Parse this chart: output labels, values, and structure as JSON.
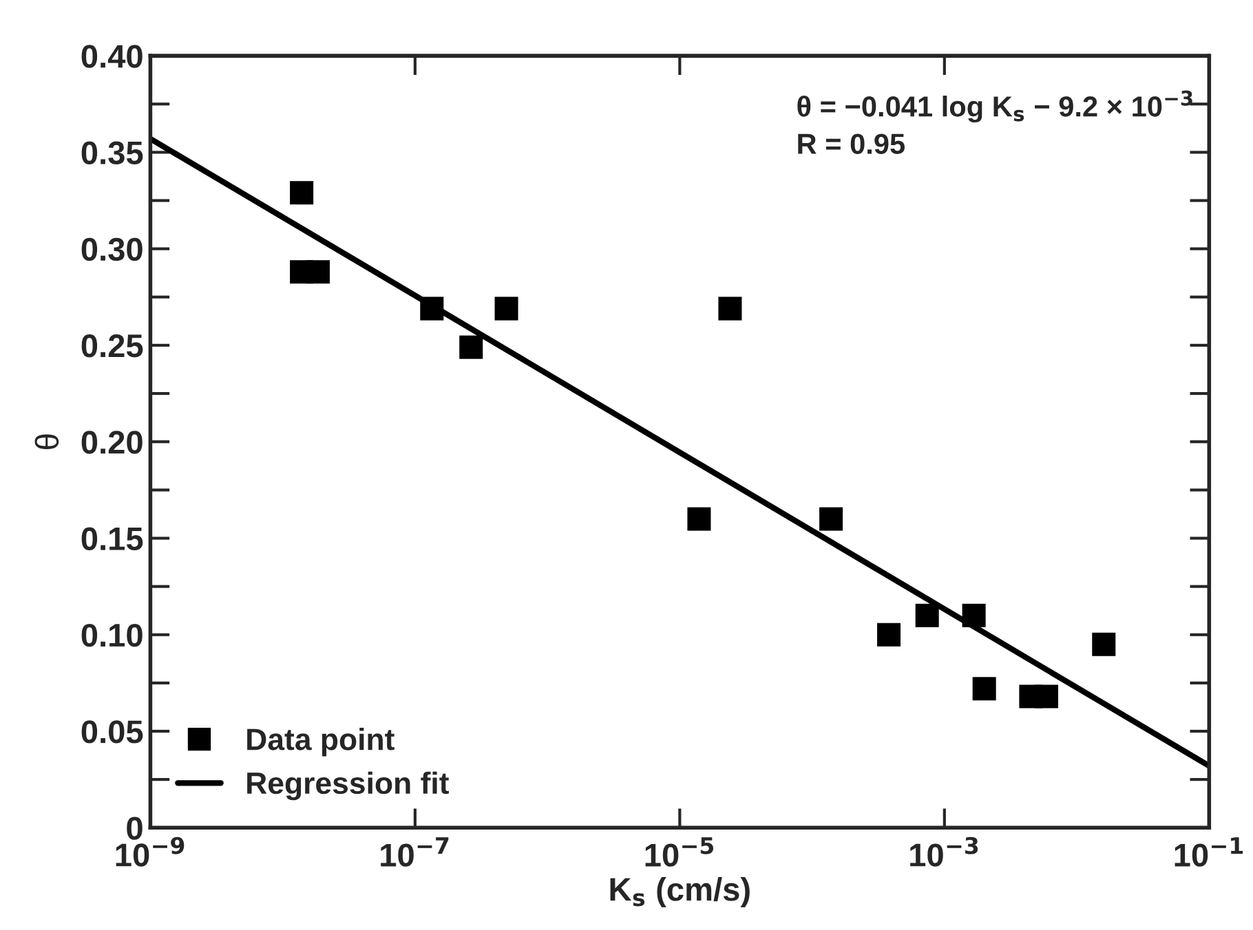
{
  "chart_data": {
    "type": "scatter",
    "xlabel": "K$_{s}$ (cm/s)",
    "ylabel": "θ",
    "log": "x",
    "annotations": [
      "θ = −0.041 log K$_{s}$ − 9.2 × 10$^{−3}$",
      "R = 0.95"
    ],
    "xlim": [
      1e-09,
      0.1
    ],
    "ylim": [
      0,
      0.4
    ],
    "xticks": [
      {
        "value": 1e-09,
        "label": "10$^{−9}$"
      },
      {
        "value": 1e-07,
        "label": "10$^{−7}$"
      },
      {
        "value": 1e-05,
        "label": "10$^{−5}$"
      },
      {
        "value": 0.001,
        "label": "10$^{−3}$"
      },
      {
        "value": 0.1,
        "label": "10$^{−1}$"
      }
    ],
    "yticks": [
      0,
      {
        "value": 0.025,
        "label": null
      },
      {
        "value": 0.05,
        "label": "0.05"
      },
      {
        "value": 0.075,
        "label": null
      },
      {
        "value": 0.1,
        "label": "0.10"
      },
      {
        "value": 0.125,
        "label": null
      },
      {
        "value": 0.15,
        "label": "0.15"
      },
      {
        "value": 0.175,
        "label": null
      },
      {
        "value": 0.2,
        "label": "0.20"
      },
      {
        "value": 0.225,
        "label": null
      },
      {
        "value": 0.25,
        "label": "0.25"
      },
      {
        "value": 0.275,
        "label": null
      },
      {
        "value": 0.3,
        "label": "0.30"
      },
      {
        "value": 0.325,
        "label": null
      },
      {
        "value": 0.35,
        "label": "0.35"
      },
      {
        "value": 0.375,
        "label": null
      },
      {
        "value": 0.4,
        "label": "0.40"
      }
    ],
    "grid": false,
    "legend": "bottom left",
    "series": [
      {
        "name": "Data point",
        "marker": "square",
        "color": "#000000",
        "x": [
          1.39e-08,
          1.39e-08,
          1.85e-08,
          1.34e-07,
          2.65e-07,
          4.9e-07,
          2.4e-05,
          1.4e-05,
          0.000139,
          0.00038,
          0.00074,
          0.00167,
          0.002,
          0.0045,
          0.0059,
          0.016
        ],
        "values": [
          0.329,
          0.288,
          0.288,
          0.269,
          0.249,
          0.269,
          0.269,
          0.16,
          0.16,
          0.1,
          0.11,
          0.11,
          0.072,
          0.068,
          0.068,
          0.095
        ]
      },
      {
        "name": "Regression fit",
        "type": "line",
        "marker": "none",
        "line_style": "solid",
        "color": "#000000",
        "x": [
          1e-09,
          0.1
        ],
        "values": [
          0.357,
          0.032
        ]
      }
    ]
  }
}
